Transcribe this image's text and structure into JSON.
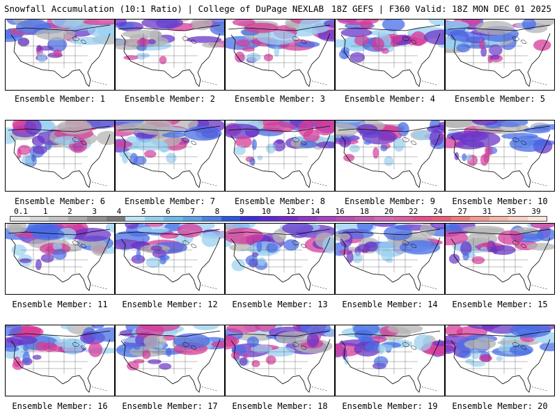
{
  "header": {
    "left": "Snowfall Accumulation (10:1 Ratio) | College of DuPage NEXLAB",
    "right": "18Z GEFS | F360 Valid: 18Z MON DEC 01 2025"
  },
  "legend": {
    "labels": [
      "0.1",
      "1",
      "2",
      "3",
      "4",
      "5",
      "6",
      "7",
      "8",
      "9",
      "10",
      "12",
      "14",
      "16",
      "18",
      "20",
      "22",
      "24",
      "27",
      "31",
      "35",
      "39"
    ],
    "colors": [
      "#e8e8e8",
      "#d6d6d6",
      "#c3c3c3",
      "#aaaaaa",
      "#8f8f8f",
      "#7a7a7a",
      "#b9e5f5",
      "#8fd0f0",
      "#6cb8ea",
      "#5aa0e6",
      "#4a7fe8",
      "#2d55e0",
      "#3a2fd6",
      "#5a2ad0",
      "#7428c8",
      "#9035c4",
      "#a840c0",
      "#bc4ab8",
      "#c857b0",
      "#d466b8",
      "#dd5aa0",
      "#e44d8c",
      "#ea5c78",
      "#ee7a78",
      "#f29a90",
      "#f5b5a8",
      "#f8cfc2",
      "#fbe6dc"
    ]
  },
  "members": [
    {
      "label": "Ensemble Member: 1"
    },
    {
      "label": "Ensemble Member: 2"
    },
    {
      "label": "Ensemble Member: 3"
    },
    {
      "label": "Ensemble Member: 4"
    },
    {
      "label": "Ensemble Member: 5"
    },
    {
      "label": "Ensemble Member: 6"
    },
    {
      "label": "Ensemble Member: 7"
    },
    {
      "label": "Ensemble Member: 8"
    },
    {
      "label": "Ensemble Member: 9"
    },
    {
      "label": "Ensemble Member: 10"
    },
    {
      "label": "Ensemble Member: 11"
    },
    {
      "label": "Ensemble Member: 12"
    },
    {
      "label": "Ensemble Member: 13"
    },
    {
      "label": "Ensemble Member: 14"
    },
    {
      "label": "Ensemble Member: 15"
    },
    {
      "label": "Ensemble Member: 16"
    },
    {
      "label": "Ensemble Member: 17"
    },
    {
      "label": "Ensemble Member: 18"
    },
    {
      "label": "Ensemble Member: 19"
    },
    {
      "label": "Ensemble Member: 20"
    }
  ],
  "colors": {
    "snow_heavy": "#d63c9a",
    "snow_mod": "#6a35c8",
    "snow_light": "#4a6ee6",
    "snow_trace": "#9ad0f0",
    "snow_gray": "#b4b4b4"
  }
}
